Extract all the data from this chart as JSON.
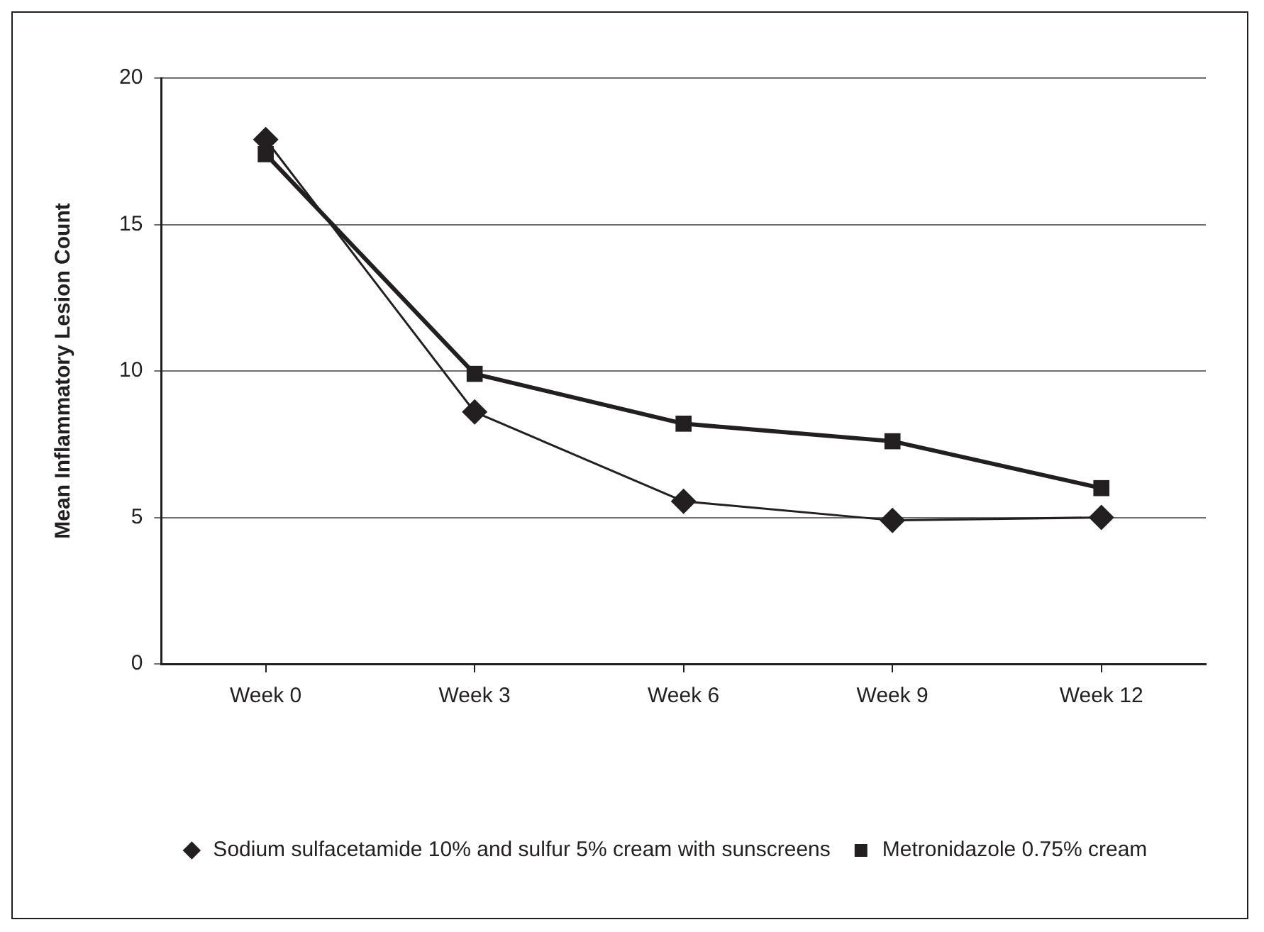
{
  "chart_data": {
    "type": "line",
    "ylabel": "Mean Inflammatory Lesion Count",
    "categories": [
      "Week 0",
      "Week 3",
      "Week 6",
      "Week 9",
      "Week 12"
    ],
    "series": [
      {
        "name": "Sodium sulfacetamide 10% and sulfur 5% cream with sunscreens",
        "color": "#231f20",
        "marker": "diamond",
        "values": [
          17.9,
          8.6,
          5.55,
          4.9,
          5.0
        ]
      },
      {
        "name": "Metronidazole 0.75% cream",
        "color": "#231f20",
        "marker": "square",
        "values": [
          17.4,
          9.9,
          8.2,
          7.6,
          6.0
        ]
      }
    ],
    "ylim": [
      0,
      20
    ],
    "yticks": [
      0,
      5,
      10,
      15,
      20
    ],
    "grid": "y",
    "legend": "bottom",
    "line_style": "solid"
  }
}
